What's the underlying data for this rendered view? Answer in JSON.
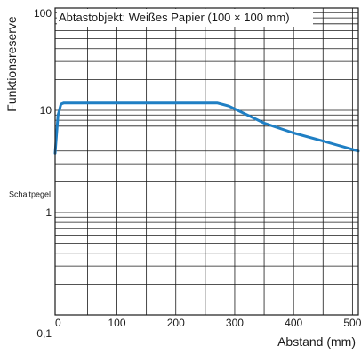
{
  "chart_data": {
    "type": "line",
    "annotation": "Abtastobjekt: Weißes Papier (100 × 100 mm)",
    "xlabel": "Abstand (mm)",
    "ylabel": "Funktionsreserve",
    "threshold_label": "Schaltpegel",
    "threshold_value": 1.5,
    "x_scale": "linear",
    "y_scale": "log",
    "xlim": [
      -5,
      510
    ],
    "ylim": [
      0.1,
      100
    ],
    "x_ticks": [
      0,
      100,
      200,
      300,
      400,
      500
    ],
    "x_tick_labels": [
      "0",
      "100",
      "200",
      "300",
      "400",
      "500"
    ],
    "y_tick_labels": [
      {
        "value": 100,
        "label": "100"
      },
      {
        "value": 10,
        "label": "10"
      },
      {
        "value": 1,
        "label": "1"
      },
      {
        "value": 0.1,
        "label": "0,1"
      }
    ],
    "grid": true,
    "series": [
      {
        "color": "#1f7fc4",
        "x": [
          -5,
          0,
          5,
          10,
          100,
          200,
          270,
          290,
          350,
          400,
          450,
          510
        ],
        "y": [
          3.8,
          9.0,
          11.5,
          11.8,
          11.8,
          11.8,
          11.8,
          11.0,
          7.5,
          6.0,
          5.0,
          4.0
        ]
      }
    ]
  }
}
